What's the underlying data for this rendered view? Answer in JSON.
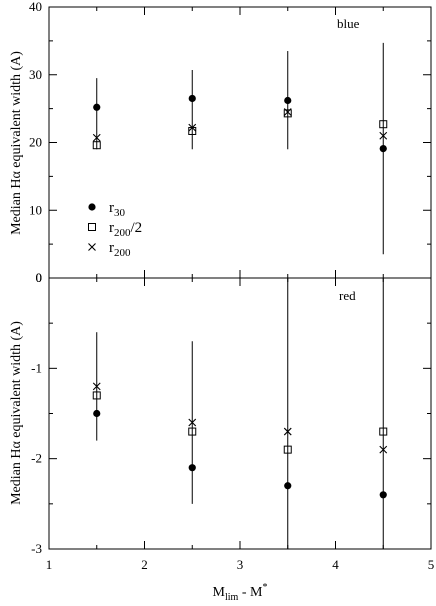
{
  "chart_data": [
    {
      "type": "scatter",
      "panel": "blue",
      "label": "blue",
      "xlim": [
        1,
        5
      ],
      "ylim": [
        0,
        40
      ],
      "yticks": [
        "0",
        "10",
        "20",
        "30",
        "40"
      ],
      "ylabel": "Median Hα equivalent width (A)",
      "series": [
        {
          "name": "r30",
          "marker": "filled-circle",
          "points": [
            {
              "x": 1.5,
              "y": 25.2,
              "err_low": 19.0,
              "err_high": 29.5
            },
            {
              "x": 2.5,
              "y": 26.5,
              "err_low": 19.0,
              "err_high": 30.7
            },
            {
              "x": 3.5,
              "y": 26.2,
              "err_low": 19.0,
              "err_high": 33.5
            },
            {
              "x": 4.5,
              "y": 19.1,
              "err_low": 3.5,
              "err_high": 34.7
            }
          ]
        },
        {
          "name": "r200/2",
          "marker": "open-square",
          "points": [
            {
              "x": 1.5,
              "y": 19.6
            },
            {
              "x": 2.5,
              "y": 21.7
            },
            {
              "x": 3.5,
              "y": 24.3
            },
            {
              "x": 4.5,
              "y": 22.7
            }
          ]
        },
        {
          "name": "r200",
          "marker": "cross",
          "points": [
            {
              "x": 1.5,
              "y": 20.7
            },
            {
              "x": 2.5,
              "y": 22.2
            },
            {
              "x": 3.5,
              "y": 24.5
            },
            {
              "x": 4.5,
              "y": 21.0
            }
          ]
        }
      ],
      "legend": [
        {
          "base": "r",
          "sub": "30",
          "suffix": "",
          "marker": "filled-circle"
        },
        {
          "base": "r",
          "sub": "200",
          "suffix": "/2",
          "marker": "open-square"
        },
        {
          "base": "r",
          "sub": "200",
          "suffix": "",
          "marker": "cross"
        }
      ],
      "legend_position": "lower-left"
    },
    {
      "type": "scatter",
      "panel": "red",
      "label": "red",
      "xlim": [
        1,
        5
      ],
      "ylim": [
        -3,
        0
      ],
      "yticks": [
        "-3",
        "-2",
        "-1",
        "0"
      ],
      "xticks": [
        "1",
        "2",
        "3",
        "4",
        "5"
      ],
      "ylabel": "Median Hα equivalent width (A)",
      "xlabel": {
        "base": "M",
        "sub": "lim",
        "middle": " - M",
        "sup": "*"
      },
      "series": [
        {
          "name": "r30",
          "marker": "filled-circle",
          "points": [
            {
              "x": 1.5,
              "y": -1.5,
              "err_low": -1.8,
              "err_high": -0.6
            },
            {
              "x": 2.5,
              "y": -2.1,
              "err_low": -2.5,
              "err_high": -0.7
            },
            {
              "x": 3.5,
              "y": -2.3,
              "err_low": -3.0,
              "err_high": 0.0
            },
            {
              "x": 4.5,
              "y": -2.4,
              "err_low": -3.0,
              "err_high": 0.0
            }
          ]
        },
        {
          "name": "r200/2",
          "marker": "open-square",
          "points": [
            {
              "x": 1.5,
              "y": -1.3
            },
            {
              "x": 2.5,
              "y": -1.7
            },
            {
              "x": 3.5,
              "y": -1.9
            },
            {
              "x": 4.5,
              "y": -1.7
            }
          ]
        },
        {
          "name": "r200",
          "marker": "cross",
          "points": [
            {
              "x": 1.5,
              "y": -1.2
            },
            {
              "x": 2.5,
              "y": -1.6
            },
            {
              "x": 3.5,
              "y": -1.7
            },
            {
              "x": 4.5,
              "y": -1.9
            }
          ]
        }
      ]
    }
  ]
}
